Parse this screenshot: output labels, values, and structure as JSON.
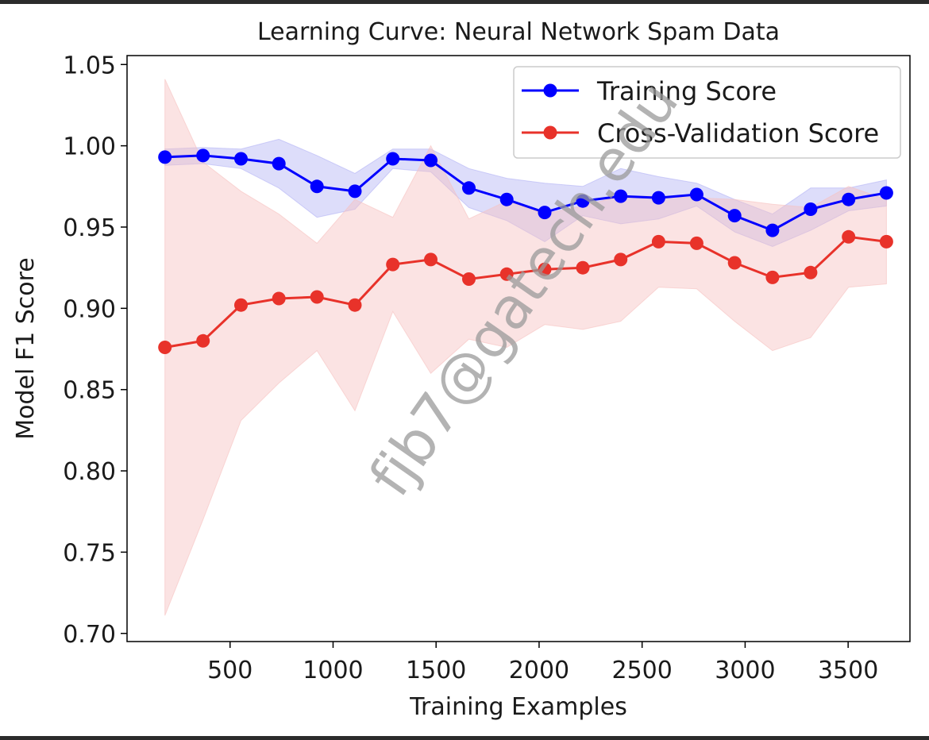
{
  "chart_data": {
    "type": "line",
    "title": "Learning Curve: Neural Network Spam Data",
    "xlabel": "Training Examples",
    "ylabel": "Model F1 Score",
    "xlim": [
      0,
      3800
    ],
    "ylim": [
      0.695,
      1.0555
    ],
    "xticks": [
      500,
      1000,
      1500,
      2000,
      2500,
      3000,
      3500
    ],
    "xtick_labels": [
      "500",
      "1000",
      "1500",
      "2000",
      "2500",
      "3000",
      "3500"
    ],
    "yticks": [
      0.7,
      0.75,
      0.8,
      0.85,
      0.9,
      0.95,
      1.0,
      1.05
    ],
    "ytick_labels": [
      "0.70",
      "0.75",
      "0.80",
      "0.85",
      "0.90",
      "0.95",
      "1.00",
      "1.05"
    ],
    "legend_position": "top-right",
    "grid": false,
    "x": [
      184,
      369,
      553,
      737,
      922,
      1106,
      1290,
      1474,
      1659,
      1843,
      2027,
      2212,
      2396,
      2580,
      2765,
      2949,
      3133,
      3318,
      3502,
      3686
    ],
    "series": [
      {
        "name": "Training Score",
        "color": "#0000ff",
        "band_color": "#b3b3f5",
        "values": [
          0.993,
          0.994,
          0.992,
          0.989,
          0.975,
          0.972,
          0.992,
          0.991,
          0.974,
          0.967,
          0.959,
          0.966,
          0.969,
          0.968,
          0.97,
          0.957,
          0.948,
          0.961,
          0.967,
          0.971
        ],
        "upper": [
          0.998,
          0.999,
          0.998,
          1.004,
          0.994,
          0.983,
          0.998,
          0.998,
          0.986,
          0.98,
          0.977,
          0.975,
          0.986,
          0.981,
          0.977,
          0.967,
          0.958,
          0.974,
          0.974,
          0.979
        ],
        "lower": [
          0.988,
          0.989,
          0.986,
          0.974,
          0.956,
          0.961,
          0.986,
          0.984,
          0.962,
          0.954,
          0.941,
          0.957,
          0.952,
          0.955,
          0.963,
          0.947,
          0.938,
          0.948,
          0.96,
          0.963
        ]
      },
      {
        "name": "Cross-Validation Score",
        "color": "#e8322a",
        "band_color": "#f6c2c0",
        "values": [
          0.876,
          0.88,
          0.902,
          0.906,
          0.907,
          0.902,
          0.927,
          0.93,
          0.918,
          0.921,
          0.924,
          0.925,
          0.93,
          0.941,
          0.94,
          0.928,
          0.919,
          0.922,
          0.944,
          0.941
        ],
        "upper": [
          1.041,
          0.99,
          0.972,
          0.958,
          0.94,
          0.967,
          0.956,
          1.0,
          0.955,
          0.966,
          0.958,
          0.963,
          0.969,
          0.969,
          0.968,
          0.967,
          0.964,
          0.962,
          0.975,
          0.967
        ],
        "lower": [
          0.711,
          0.77,
          0.831,
          0.854,
          0.874,
          0.837,
          0.898,
          0.86,
          0.881,
          0.876,
          0.89,
          0.887,
          0.892,
          0.913,
          0.912,
          0.892,
          0.874,
          0.882,
          0.913,
          0.915
        ]
      }
    ]
  },
  "watermark": "fjb7@gatech.edu"
}
